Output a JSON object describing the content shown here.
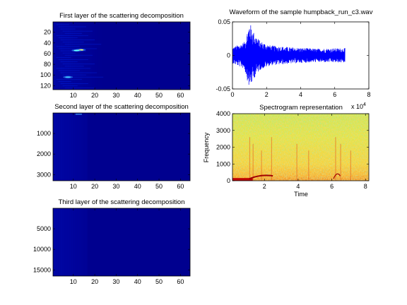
{
  "chart_data": [
    {
      "id": "scat1",
      "type": "heatmap",
      "title": "First layer of the scattering decomposition",
      "x_ticks": [
        10,
        20,
        30,
        40,
        50,
        60
      ],
      "y_ticks": [
        20,
        40,
        60,
        80,
        100,
        120
      ],
      "xlim": [
        0.5,
        64.5
      ],
      "ylim": [
        0.5,
        127.5
      ],
      "y_reversed": true,
      "colormap": "jet",
      "features": [
        {
          "x": 13.5,
          "y": 53,
          "intensity": 0.95
        },
        {
          "x": 11.5,
          "y": 54,
          "intensity": 0.7
        },
        {
          "x": 7.5,
          "y": 104,
          "intensity": 0.55
        }
      ]
    },
    {
      "id": "scat2",
      "type": "heatmap",
      "title": "Second layer of the scattering decomposition",
      "x_ticks": [
        10,
        20,
        30,
        40,
        50,
        60
      ],
      "y_ticks": [
        1000,
        2000,
        3000
      ],
      "xlim": [
        0.5,
        64.5
      ],
      "ylim": [
        0.5,
        3300
      ],
      "y_reversed": true,
      "colormap": "jet"
    },
    {
      "id": "scat3",
      "type": "heatmap",
      "title": "Third layer of the scattering decomposition",
      "x_ticks": [
        10,
        20,
        30,
        40,
        50,
        60
      ],
      "y_ticks": [
        5000,
        10000,
        15000
      ],
      "xlim": [
        0.5,
        64.5
      ],
      "ylim": [
        0.5,
        16500
      ],
      "y_reversed": true,
      "colormap": "jet"
    },
    {
      "id": "wave",
      "type": "line",
      "title": "Waveform of the sample humpback_run_c3.wav",
      "x_ticks": [
        0,
        2,
        4,
        6,
        8
      ],
      "x_tick_labels": [
        "0",
        "2",
        "4",
        "6",
        "8"
      ],
      "y_ticks": [
        -0.05,
        0,
        0.05
      ],
      "y_tick_labels": [
        "-0.05",
        "0",
        "0.05"
      ],
      "xlim": [
        0,
        80000
      ],
      "ylim": [
        -0.05,
        0.05
      ],
      "x_exponent_label": "x 10",
      "x_exponent_power": "4",
      "line_color": "#0000ff",
      "envelope": [
        {
          "x": 0,
          "amp": 0.012
        },
        {
          "x": 7000,
          "amp": 0.02
        },
        {
          "x": 10000,
          "amp": 0.05
        },
        {
          "x": 12500,
          "amp": 0.035
        },
        {
          "x": 16000,
          "amp": 0.022
        },
        {
          "x": 22000,
          "amp": 0.015
        },
        {
          "x": 35000,
          "amp": 0.012
        },
        {
          "x": 50000,
          "amp": 0.01
        },
        {
          "x": 66000,
          "amp": 0.011
        }
      ]
    },
    {
      "id": "spec",
      "type": "heatmap",
      "title": "Spectrogram representation",
      "xlabel": "Time",
      "ylabel": "Frequency",
      "x_ticks": [
        2,
        4,
        6,
        8
      ],
      "y_ticks": [
        0,
        1000,
        2000,
        3000,
        4000
      ],
      "xlim": [
        0.1,
        8.2
      ],
      "ylim": [
        0,
        4000
      ],
      "colormap": "jet",
      "features": [
        {
          "x": 1.4,
          "y": 400,
          "intensity": 0.95
        },
        {
          "x": 6.2,
          "y": 600,
          "intensity": 0.8
        }
      ]
    }
  ]
}
